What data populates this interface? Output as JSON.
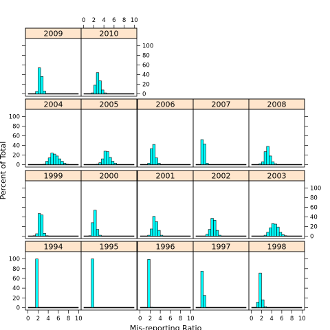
{
  "chart_data": {
    "type": "histogram",
    "layout": "lattice trellis, 5 columns x 4 rows, panels ordered bottom-left to top-right",
    "xlabel": "Mis-reporting Ratio",
    "ylabel": "Percent of Total",
    "xlim": [
      -0.5,
      10.5
    ],
    "ylim": [
      -5,
      115
    ],
    "x_ticks": [
      0,
      2,
      4,
      6,
      8,
      10
    ],
    "y_ticks": [
      0,
      20,
      40,
      60,
      80,
      100
    ],
    "strip_color": "#ffe5cc",
    "bar_color": "#00ffff",
    "bin_width": 0.5,
    "panels": [
      {
        "label": "1994",
        "bins": [
          {
            "x": 1.5,
            "y": 100
          }
        ]
      },
      {
        "label": "1995",
        "bins": [
          {
            "x": 1.5,
            "y": 100
          }
        ]
      },
      {
        "label": "1996",
        "bins": [
          {
            "x": 1.5,
            "y": 99
          },
          {
            "x": 2.0,
            "y": 1
          }
        ]
      },
      {
        "label": "1997",
        "bins": [
          {
            "x": 1.0,
            "y": 75
          },
          {
            "x": 1.5,
            "y": 25
          }
        ]
      },
      {
        "label": "1998",
        "bins": [
          {
            "x": 1.0,
            "y": 11
          },
          {
            "x": 1.5,
            "y": 71
          },
          {
            "x": 2.0,
            "y": 16
          },
          {
            "x": 2.5,
            "y": 2
          }
        ]
      },
      {
        "label": "1999",
        "bins": [
          {
            "x": 1.0,
            "y": 1
          },
          {
            "x": 1.5,
            "y": 5
          },
          {
            "x": 2.0,
            "y": 47
          },
          {
            "x": 2.5,
            "y": 44
          },
          {
            "x": 3.0,
            "y": 6
          },
          {
            "x": 3.5,
            "y": 1
          }
        ]
      },
      {
        "label": "2000",
        "bins": [
          {
            "x": 1.0,
            "y": 1
          },
          {
            "x": 1.5,
            "y": 28
          },
          {
            "x": 2.0,
            "y": 54
          },
          {
            "x": 2.5,
            "y": 14
          },
          {
            "x": 3.0,
            "y": 2
          }
        ]
      },
      {
        "label": "2001",
        "bins": [
          {
            "x": 1.5,
            "y": 2
          },
          {
            "x": 2.0,
            "y": 15
          },
          {
            "x": 2.5,
            "y": 41
          },
          {
            "x": 3.0,
            "y": 30
          },
          {
            "x": 3.5,
            "y": 12
          },
          {
            "x": 4.0,
            "y": 2
          }
        ]
      },
      {
        "label": "2002",
        "bins": [
          {
            "x": 2.0,
            "y": 4
          },
          {
            "x": 2.5,
            "y": 14
          },
          {
            "x": 3.0,
            "y": 37
          },
          {
            "x": 3.5,
            "y": 33
          },
          {
            "x": 4.0,
            "y": 12
          },
          {
            "x": 4.5,
            "y": 2
          }
        ]
      },
      {
        "label": "2003",
        "bins": [
          {
            "x": 2.5,
            "y": 2
          },
          {
            "x": 3.0,
            "y": 8
          },
          {
            "x": 3.5,
            "y": 17
          },
          {
            "x": 4.0,
            "y": 26
          },
          {
            "x": 4.5,
            "y": 25
          },
          {
            "x": 5.0,
            "y": 19
          },
          {
            "x": 5.5,
            "y": 8
          },
          {
            "x": 6.0,
            "y": 3
          },
          {
            "x": 6.5,
            "y": 1
          }
        ]
      },
      {
        "label": "2004",
        "bins": [
          {
            "x": 3.0,
            "y": 1
          },
          {
            "x": 3.5,
            "y": 7
          },
          {
            "x": 4.0,
            "y": 14
          },
          {
            "x": 4.5,
            "y": 24
          },
          {
            "x": 5.0,
            "y": 22
          },
          {
            "x": 5.5,
            "y": 18
          },
          {
            "x": 6.0,
            "y": 12
          },
          {
            "x": 6.5,
            "y": 7
          },
          {
            "x": 7.0,
            "y": 3
          },
          {
            "x": 7.5,
            "y": 1
          }
        ]
      },
      {
        "label": "2005",
        "bins": [
          {
            "x": 2.5,
            "y": 1
          },
          {
            "x": 3.0,
            "y": 4
          },
          {
            "x": 3.5,
            "y": 12
          },
          {
            "x": 4.0,
            "y": 28
          },
          {
            "x": 4.5,
            "y": 27
          },
          {
            "x": 5.0,
            "y": 15
          },
          {
            "x": 5.5,
            "y": 7
          },
          {
            "x": 6.0,
            "y": 3
          }
        ]
      },
      {
        "label": "2006",
        "bins": [
          {
            "x": 1.5,
            "y": 3
          },
          {
            "x": 2.0,
            "y": 33
          },
          {
            "x": 2.5,
            "y": 42
          },
          {
            "x": 3.0,
            "y": 14
          },
          {
            "x": 3.5,
            "y": 3
          }
        ]
      },
      {
        "label": "2007",
        "bins": [
          {
            "x": 1.0,
            "y": 52
          },
          {
            "x": 1.5,
            "y": 43
          },
          {
            "x": 2.0,
            "y": 3
          }
        ]
      },
      {
        "label": "2008",
        "bins": [
          {
            "x": 1.5,
            "y": 2
          },
          {
            "x": 2.0,
            "y": 6
          },
          {
            "x": 2.5,
            "y": 27
          },
          {
            "x": 3.0,
            "y": 38
          },
          {
            "x": 3.5,
            "y": 18
          },
          {
            "x": 4.0,
            "y": 6
          },
          {
            "x": 4.5,
            "y": 2
          }
        ]
      },
      {
        "label": "2009",
        "bins": [
          {
            "x": 1.5,
            "y": 5
          },
          {
            "x": 2.0,
            "y": 54
          },
          {
            "x": 2.5,
            "y": 36
          },
          {
            "x": 3.0,
            "y": 6
          }
        ]
      },
      {
        "label": "2010",
        "bins": [
          {
            "x": 1.5,
            "y": 2
          },
          {
            "x": 2.0,
            "y": 18
          },
          {
            "x": 2.5,
            "y": 44
          },
          {
            "x": 3.0,
            "y": 27
          },
          {
            "x": 3.5,
            "y": 8
          },
          {
            "x": 4.0,
            "y": 2
          }
        ]
      }
    ]
  }
}
